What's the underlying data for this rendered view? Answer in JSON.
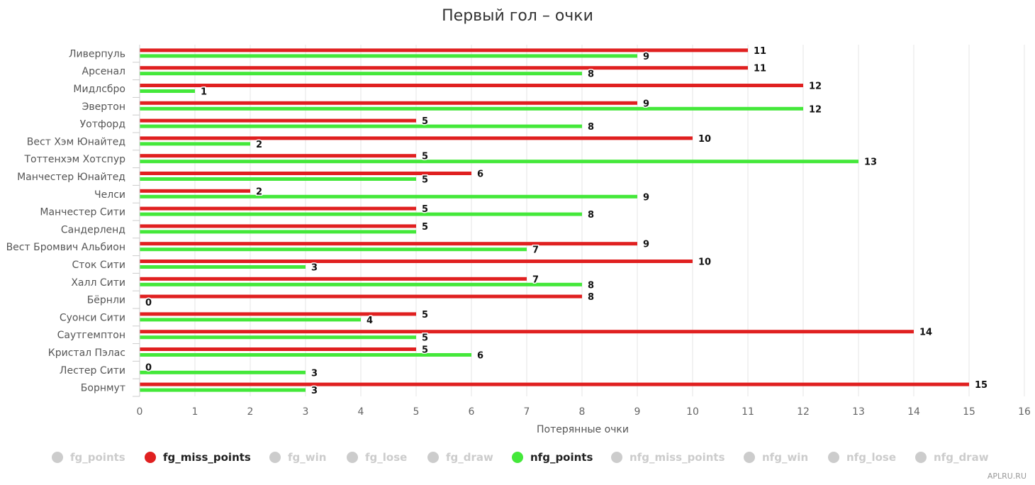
{
  "chart_data": {
    "type": "bar",
    "orientation": "horizontal",
    "title": "Первый гол – очки",
    "xlabel": "Потерянные очки",
    "ylabel": "",
    "xlim": [
      0,
      16
    ],
    "x_ticks": [
      0,
      1,
      2,
      3,
      4,
      5,
      6,
      7,
      8,
      9,
      10,
      11,
      12,
      13,
      14,
      15,
      16
    ],
    "grid": true,
    "legend_position": "bottom",
    "categories": [
      "Ливерпуль",
      "Арсенал",
      "Мидлсбро",
      "Эвертон",
      "Уотфорд",
      "Вест Хэм Юнайтед",
      "Тоттенхэм Хотспур",
      "Манчестер Юнайтед",
      "Челси",
      "Манчестер Сити",
      "Сандерленд",
      "Вест Бромвич Альбион",
      "Сток Сити",
      "Халл Сити",
      "Бёрнли",
      "Суонси Сити",
      "Саутгемптон",
      "Кристал Пэлас",
      "Лестер Сити",
      "Борнмут"
    ],
    "series": [
      {
        "name": "fg_miss_points",
        "color": "#e02020",
        "values": [
          11,
          11,
          12,
          9,
          5,
          10,
          5,
          6,
          2,
          5,
          5,
          9,
          10,
          7,
          8,
          5,
          14,
          5,
          0,
          15
        ],
        "labels": [
          "11",
          "11",
          "12",
          "9",
          "5",
          "10",
          "5",
          "6",
          "2",
          "5",
          "5",
          "9",
          "10",
          "7",
          "8",
          "5",
          "14",
          "5",
          "0",
          "15"
        ]
      },
      {
        "name": "nfg_points",
        "color": "#44e83a",
        "values": [
          9,
          8,
          1,
          12,
          8,
          2,
          13,
          5,
          9,
          8,
          5,
          7,
          3,
          8,
          0,
          4,
          5,
          6,
          3,
          3
        ],
        "labels": [
          "9",
          "8",
          "1",
          "12",
          "8",
          "2",
          "13",
          "5",
          "9",
          "8",
          "",
          "7",
          "3",
          "8",
          "0",
          "4",
          "5",
          "6",
          "3",
          "3"
        ]
      }
    ]
  },
  "legend": [
    {
      "name": "fg_points",
      "active": false,
      "color": "#cccccc"
    },
    {
      "name": "fg_miss_points",
      "active": true,
      "color": "#e02020"
    },
    {
      "name": "fg_win",
      "active": false,
      "color": "#cccccc"
    },
    {
      "name": "fg_lose",
      "active": false,
      "color": "#cccccc"
    },
    {
      "name": "fg_draw",
      "active": false,
      "color": "#cccccc"
    },
    {
      "name": "nfg_points",
      "active": true,
      "color": "#44e83a"
    },
    {
      "name": "nfg_miss_points",
      "active": false,
      "color": "#cccccc"
    },
    {
      "name": "nfg_win",
      "active": false,
      "color": "#cccccc"
    },
    {
      "name": "nfg_lose",
      "active": false,
      "color": "#cccccc"
    },
    {
      "name": "nfg_draw",
      "active": false,
      "color": "#cccccc"
    }
  ],
  "credits": "APLRU.RU"
}
